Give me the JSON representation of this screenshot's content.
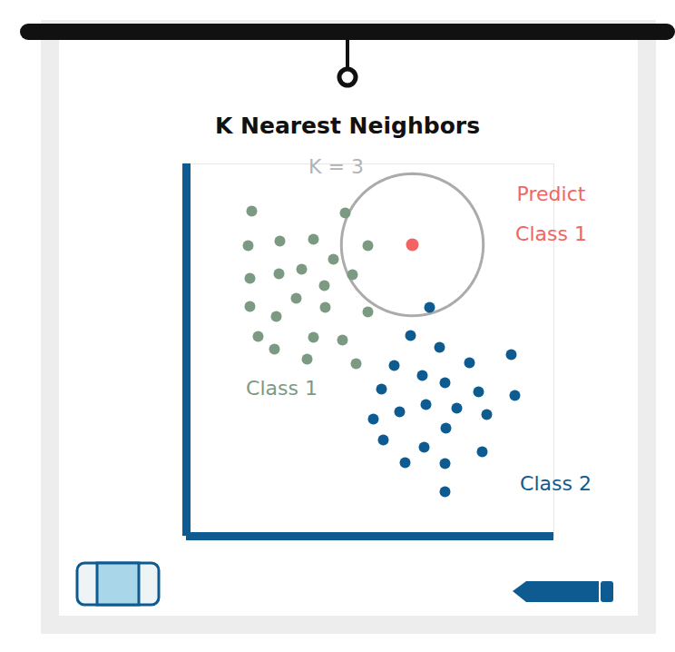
{
  "chart_data": {
    "type": "scatter",
    "title": "K Nearest Neighbors",
    "tick_labels": false,
    "xlim": [
      0,
      405
    ],
    "ylim": [
      0,
      410
    ],
    "k": 3,
    "series": [
      {
        "name": "Class 1",
        "color": "#7b9a81",
        "x": [
          72,
          175,
          68,
          103,
          140,
          200,
          127,
          162,
          70,
          102,
          152,
          183,
          121,
          70,
          99,
          153,
          200,
          79,
          140,
          172,
          97,
          133,
          187
        ],
        "y": [
          358,
          356,
          320,
          325,
          327,
          320,
          294,
          305,
          284,
          289,
          276,
          288,
          262,
          253,
          242,
          252,
          247,
          220,
          219,
          216,
          206,
          195,
          190
        ]
      },
      {
        "name": "Class 2",
        "color": "#0e5b91",
        "x": [
          268,
          247,
          279,
          358,
          229,
          312,
          260,
          285,
          215,
          322,
          362,
          264,
          235,
          298,
          206,
          331,
          286,
          217,
          262,
          326,
          241,
          285,
          285
        ],
        "y": [
          252,
          221,
          208,
          200,
          188,
          191,
          177,
          169,
          162,
          159,
          155,
          145,
          137,
          141,
          129,
          134,
          119,
          106,
          98,
          93,
          81,
          80,
          49
        ]
      }
    ],
    "query": {
      "x": 249,
      "y": 321,
      "color": "#f26463",
      "label": "Predict\nClass 1"
    },
    "annotations": [
      "K = 3"
    ]
  }
}
